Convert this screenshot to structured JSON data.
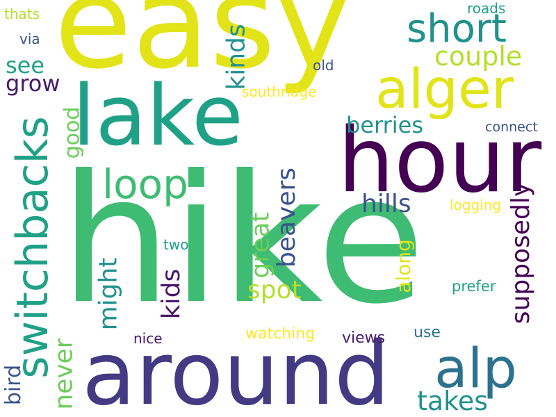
{
  "palette": {
    "background": "#ffffff",
    "yellow": "#e2e418",
    "yellow_green": "#b5de2b",
    "green": "#3fbc73",
    "light_green": "#6ccd5a",
    "teal": "#1fa187",
    "cyan": "#21918c",
    "blue": "#2c728e",
    "slate": "#3b528b",
    "indigo": "#443983",
    "purple": "#440154",
    "dark_purple": "#48186a",
    "gold": "#fde725"
  },
  "words": {
    "hike": "hike",
    "easy": "easy",
    "hour": "hour",
    "around": "around",
    "lake": "lake",
    "alger": "alger",
    "alp": "alp",
    "switchbacks": "switchbacks",
    "loop": "loop",
    "short": "short",
    "couple": "couple",
    "kinds_top": "kinds",
    "see": "see",
    "grow": "grow",
    "berries": "berries",
    "hills": "hills",
    "beavers": "beavers",
    "kids": "kids",
    "might": "might",
    "great": "great",
    "supposedly": "supposedly",
    "spot": "spot",
    "along": "along",
    "takes": "takes",
    "never": "never",
    "bird": "bird",
    "good": "good",
    "two": "two",
    "nice": "nice",
    "watching": "watching",
    "views": "views",
    "use": "use",
    "prefer": "prefer",
    "logging": "logging",
    "connect": "connect",
    "old": "old",
    "southridge": "southridge",
    "roads": "roads",
    "via": "via",
    "thats": "thats"
  }
}
